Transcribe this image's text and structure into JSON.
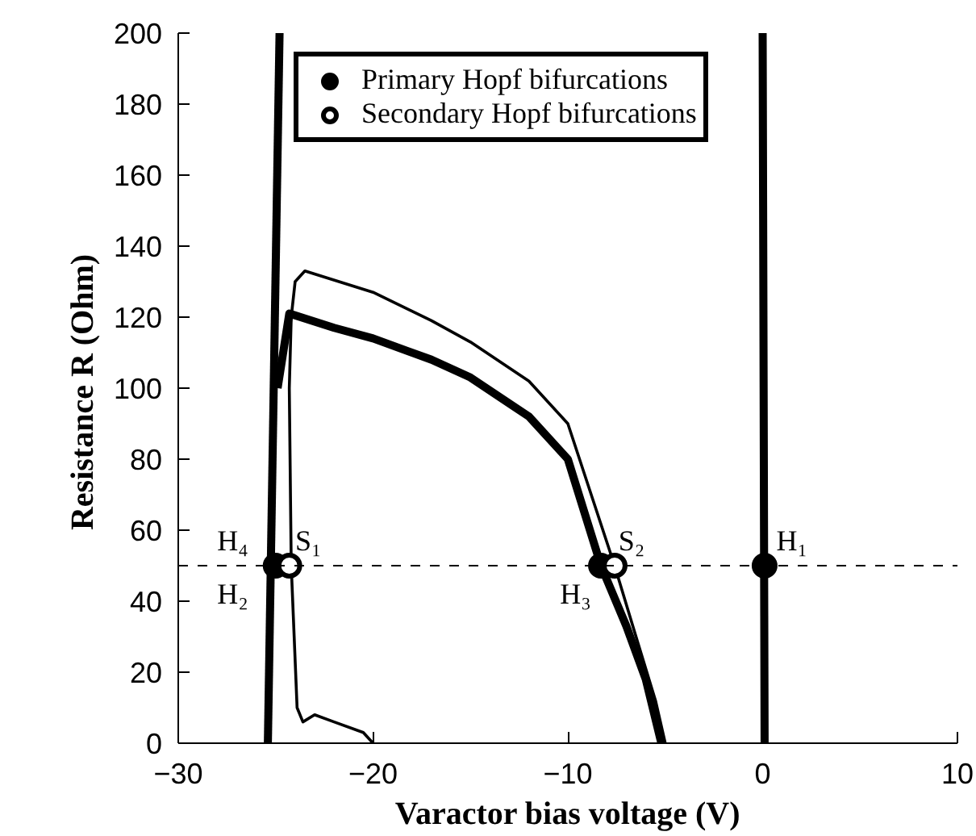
{
  "chart_data": {
    "type": "line",
    "xlabel": "Varactor bias voltage (V)",
    "ylabel": "Resistance R  (Ohm)",
    "xlim": [
      -30,
      10
    ],
    "xticks": [
      -30,
      -20,
      -10,
      0,
      10
    ],
    "ylim": [
      0,
      200
    ],
    "yticks": [
      0,
      20,
      40,
      60,
      80,
      100,
      120,
      140,
      160,
      180,
      200
    ],
    "grid": false,
    "legend": "top",
    "line_style": "solid",
    "series": [
      {
        "color": "#000000",
        "x": [
          -25.4,
          -24.8
        ],
        "values": [
          0,
          200
        ]
      },
      {
        "color": "#000000",
        "x": [
          0.1,
          0.05,
          0
        ],
        "values": [
          0,
          100,
          200
        ]
      },
      {
        "color": "#000000",
        "x": [
          -24.9,
          -24.3,
          -22,
          -20,
          -17,
          -15,
          -12,
          -10,
          -8.3,
          -7,
          -6,
          -5.2
        ],
        "values": [
          100,
          121,
          117,
          114,
          108,
          103,
          92,
          80,
          50,
          33,
          18,
          0
        ]
      },
      {
        "color": "#000000",
        "x": [
          -20,
          -20.5,
          -22,
          -23,
          -23.6,
          -23.9,
          -24.2,
          -24.3,
          -24.2,
          -24,
          -23.5,
          -20,
          -17,
          -15,
          -12,
          -10,
          -7.6,
          -6.5,
          -5.5,
          -5
        ],
        "values": [
          0,
          3,
          6,
          8,
          6,
          10,
          50,
          100,
          120,
          130,
          133,
          127,
          119,
          113,
          102,
          90,
          50,
          30,
          12,
          0
        ]
      },
      {
        "type": "scatter",
        "name": "Primary Hopf bifurcations",
        "color": "#000000",
        "marker": "circle",
        "x": [
          -25,
          -8.3,
          0.1
        ],
        "values": [
          50,
          50,
          50
        ]
      },
      {
        "type": "scatter",
        "name": "Secondary Hopf bifurcations",
        "color": "#ffffff",
        "marker": "circle",
        "x": [
          -24.3,
          -7.6
        ],
        "values": [
          50,
          50
        ]
      }
    ],
    "ref_lines": [
      {
        "axis": "y",
        "value": 50,
        "color": "#000000",
        "line_style": "dashed"
      }
    ],
    "annotations": [
      "H₄",
      "H₂",
      "S₁",
      "S₂",
      "H₃",
      "H₁"
    ]
  }
}
